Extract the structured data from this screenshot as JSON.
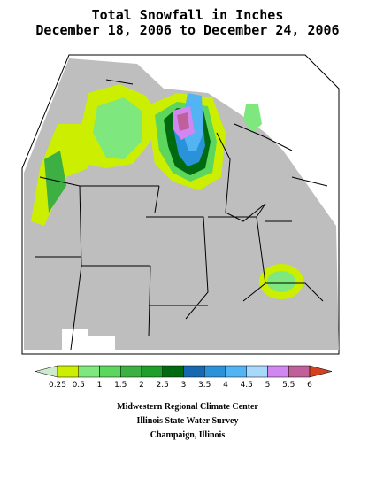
{
  "title": {
    "line1": "Total Snowfall in Inches",
    "line2": "December 18, 2006 to December 24, 2006"
  },
  "legend": {
    "colors": [
      "#cdeacd",
      "#ccee00",
      "#7ee87e",
      "#5cd65c",
      "#3cb043",
      "#1e9e2a",
      "#006a10",
      "#1668b0",
      "#2a92d8",
      "#52b4f2",
      "#a8d8fa",
      "#d088f0",
      "#c0609a",
      "#d44020"
    ],
    "labels": [
      "0.25",
      "0.5",
      "1",
      "1.5",
      "2",
      "2.5",
      "3",
      "3.5",
      "4",
      "4.5",
      "5",
      "5.5",
      "6"
    ]
  },
  "credits": [
    "Midwestern Regional Climate Center",
    "Illinois State Water Survey",
    "Champaign, Illinois"
  ]
}
